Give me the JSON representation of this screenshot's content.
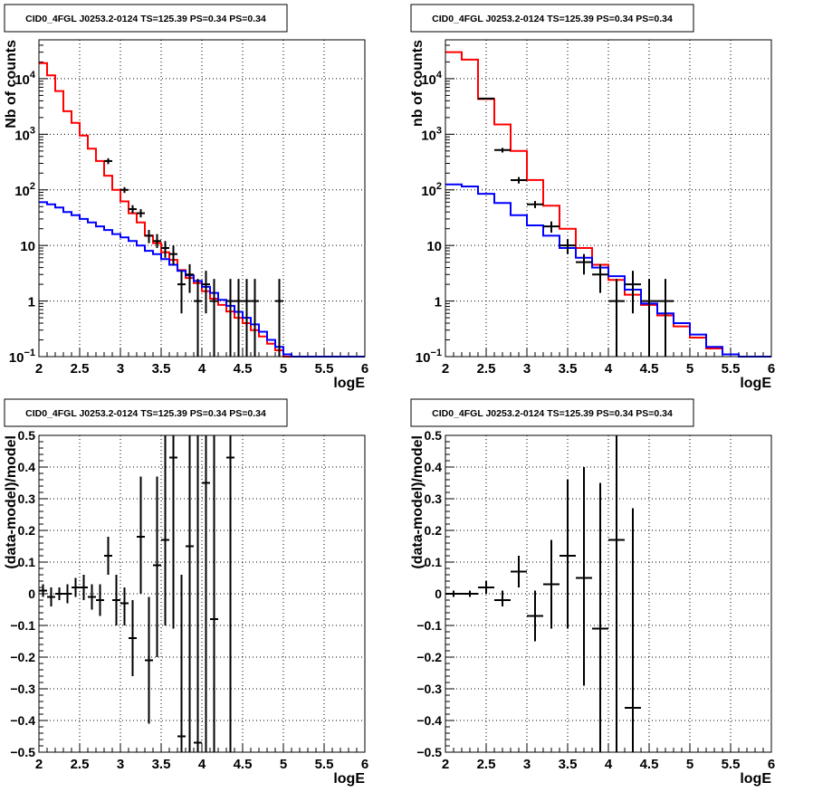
{
  "chart_data": [
    {
      "type": "line",
      "title": "CID0_4FGL J0253.2-0124 TS=125.39 PS=0.34 PS=0.34",
      "xlabel": "logE",
      "ylabel": "Nb of counts",
      "xlim": [
        2,
        6
      ],
      "ylim": [
        0.1,
        50000
      ],
      "yscale": "log",
      "grid": true,
      "x_ticks": [
        "2",
        "2.5",
        "3",
        "3.5",
        "4",
        "4.5",
        "5",
        "5.5",
        "6"
      ],
      "y_ticks": [
        {
          "value": 0.1,
          "label": "10",
          "exp": "−1"
        },
        {
          "value": 1,
          "label": "1",
          "exp": ""
        },
        {
          "value": 10,
          "label": "10",
          "exp": ""
        },
        {
          "value": 100,
          "label": "10",
          "exp": "2"
        },
        {
          "value": 1000,
          "label": "10",
          "exp": "3"
        },
        {
          "value": 10000,
          "label": "10",
          "exp": "4"
        }
      ],
      "bin_edges": [
        2.0,
        2.1,
        2.2,
        2.3,
        2.4,
        2.5,
        2.6,
        2.7,
        2.8,
        2.9,
        3.0,
        3.1,
        3.2,
        3.3,
        3.4,
        3.5,
        3.6,
        3.7,
        3.8,
        3.9,
        4.0,
        4.1,
        4.2,
        4.3,
        4.4,
        4.5,
        4.6,
        4.7,
        4.8,
        4.9,
        5.0,
        5.1,
        5.2,
        5.3,
        5.4,
        5.5,
        5.6,
        5.7,
        5.8,
        5.9,
        6.0
      ],
      "series": [
        {
          "color": "#ff0000",
          "kind": "hist",
          "values": [
            19000,
            11500,
            6000,
            2600,
            1600,
            950,
            550,
            330,
            180,
            100,
            62,
            38,
            26,
            15,
            11,
            7.5,
            5.5,
            3.6,
            2.6,
            2.1,
            1.5,
            1.1,
            0.85,
            0.65,
            0.5,
            0.4,
            0.3,
            0.23,
            0.17,
            0.13,
            0.1,
            0.1,
            0.1,
            0.1,
            0.1,
            0.1,
            0.1,
            0.1,
            0.1,
            0.1
          ]
        },
        {
          "color": "#0000ff",
          "kind": "hist",
          "values": [
            60,
            55,
            48,
            40,
            35,
            30,
            26,
            22,
            19,
            16,
            14,
            12,
            10,
            8,
            7,
            5.7,
            4.5,
            3.5,
            2.9,
            2.3,
            1.8,
            1.4,
            1.05,
            0.82,
            0.64,
            0.5,
            0.38,
            0.28,
            0.2,
            0.15,
            0.11,
            0.1,
            0.1,
            0.1,
            0.1,
            0.1,
            0.1,
            0.1,
            0.1,
            0.1
          ]
        },
        {
          "color": "#000000",
          "kind": "points",
          "points": [
            {
              "x": 2.85,
              "y": 330,
              "lo": 290,
              "hi": 370
            },
            {
              "x": 3.05,
              "y": 100,
              "lo": 88,
              "hi": 112
            },
            {
              "x": 3.15,
              "y": 45,
              "lo": 38,
              "hi": 53
            },
            {
              "x": 3.25,
              "y": 38,
              "lo": 32,
              "hi": 45
            },
            {
              "x": 3.35,
              "y": 15,
              "lo": 11,
              "hi": 19
            },
            {
              "x": 3.45,
              "y": 12,
              "lo": 9,
              "hi": 16
            },
            {
              "x": 3.55,
              "y": 9,
              "lo": 6,
              "hi": 12
            },
            {
              "x": 3.65,
              "y": 7,
              "lo": 4.5,
              "hi": 10
            },
            {
              "x": 3.75,
              "y": 2,
              "lo": 0.6,
              "hi": 3.5
            },
            {
              "x": 3.85,
              "y": 3,
              "lo": 1.4,
              "hi": 4.6
            },
            {
              "x": 3.95,
              "y": 1,
              "lo": 0.1,
              "hi": 2.5
            },
            {
              "x": 4.05,
              "y": 2,
              "lo": 0.6,
              "hi": 3.5
            },
            {
              "x": 4.15,
              "y": 1,
              "lo": 0.1,
              "hi": 2.5
            },
            {
              "x": 4.35,
              "y": 1,
              "lo": 0.1,
              "hi": 2.5
            },
            {
              "x": 4.45,
              "y": 1,
              "lo": 0.1,
              "hi": 2.5
            },
            {
              "x": 4.55,
              "y": 1,
              "lo": 0.1,
              "hi": 2.5
            },
            {
              "x": 4.65,
              "y": 1,
              "lo": 0.1,
              "hi": 2.5
            },
            {
              "x": 4.95,
              "y": 1,
              "lo": 0.1,
              "hi": 2.5
            }
          ]
        }
      ]
    },
    {
      "type": "line",
      "title": "CID0_4FGL J0253.2-0124 TS=125.39 PS=0.34 PS=0.34",
      "xlabel": "logE",
      "ylabel": "nb of counts",
      "xlim": [
        2,
        6
      ],
      "ylim": [
        0.1,
        50000
      ],
      "yscale": "log",
      "grid": true,
      "x_ticks": [
        "2",
        "2.5",
        "3",
        "3.5",
        "4",
        "4.5",
        "5",
        "5.5",
        "6"
      ],
      "y_ticks": [
        {
          "value": 0.1,
          "label": "10",
          "exp": "−1"
        },
        {
          "value": 1,
          "label": "1",
          "exp": ""
        },
        {
          "value": 10,
          "label": "10",
          "exp": ""
        },
        {
          "value": 100,
          "label": "10",
          "exp": "2"
        },
        {
          "value": 1000,
          "label": "10",
          "exp": "3"
        },
        {
          "value": 10000,
          "label": "10",
          "exp": "4"
        }
      ],
      "bin_edges": [
        2.0,
        2.2,
        2.4,
        2.6,
        2.8,
        3.0,
        3.2,
        3.4,
        3.6,
        3.8,
        4.0,
        4.2,
        4.4,
        4.6,
        4.8,
        5.0,
        5.2,
        5.4,
        5.6,
        5.8,
        6.0
      ],
      "series": [
        {
          "color": "#ff0000",
          "kind": "hist",
          "values": [
            30000,
            22000,
            4300,
            1500,
            500,
            150,
            52,
            20,
            9,
            4.5,
            2.4,
            1.3,
            0.85,
            0.55,
            0.35,
            0.22,
            0.14,
            0.11,
            0.1,
            0.1
          ]
        },
        {
          "color": "#0000ff",
          "kind": "hist",
          "values": [
            125,
            115,
            85,
            58,
            35,
            23,
            15,
            9,
            6,
            4,
            2.8,
            1.6,
            0.9,
            0.6,
            0.4,
            0.25,
            0.15,
            0.11,
            0.1,
            0.1
          ]
        },
        {
          "color": "#000000",
          "kind": "points",
          "points": [
            {
              "x": 2.5,
              "y": 4400,
              "lo": 4250,
              "hi": 4550
            },
            {
              "x": 2.7,
              "y": 520,
              "lo": 470,
              "hi": 570
            },
            {
              "x": 2.9,
              "y": 150,
              "lo": 130,
              "hi": 170
            },
            {
              "x": 3.1,
              "y": 55,
              "lo": 47,
              "hi": 63
            },
            {
              "x": 3.3,
              "y": 22,
              "lo": 17,
              "hi": 27
            },
            {
              "x": 3.5,
              "y": 10,
              "lo": 7,
              "hi": 13
            },
            {
              "x": 3.7,
              "y": 5,
              "lo": 3,
              "hi": 7
            },
            {
              "x": 3.9,
              "y": 3,
              "lo": 1.4,
              "hi": 4.6
            },
            {
              "x": 4.1,
              "y": 1,
              "lo": 0.1,
              "hi": 2.5
            },
            {
              "x": 4.3,
              "y": 2,
              "lo": 0.6,
              "hi": 3.5
            },
            {
              "x": 4.5,
              "y": 1,
              "lo": 0.1,
              "hi": 2.5
            },
            {
              "x": 4.7,
              "y": 1,
              "lo": 0.1,
              "hi": 2.5
            }
          ]
        }
      ]
    },
    {
      "type": "scatter",
      "title": "CID0_4FGL J0253.2-0124 TS=125.39 PS=0.34 PS=0.34",
      "xlabel": "logE",
      "ylabel": "(data-model)/model",
      "xlim": [
        2,
        6
      ],
      "ylim": [
        -0.5,
        0.5
      ],
      "grid": true,
      "x_ticks": [
        "2",
        "2.5",
        "3",
        "3.5",
        "4",
        "4.5",
        "5",
        "5.5",
        "6"
      ],
      "y_ticks": [
        "−0.5",
        "−0.4",
        "−0.3",
        "−0.2",
        "−0.1",
        "0",
        "0.1",
        "0.2",
        "0.3",
        "0.4",
        "0.5"
      ],
      "half_width": 0.05,
      "points": [
        {
          "x": 2.05,
          "y": 0.01,
          "lo": -0.01,
          "hi": 0.03
        },
        {
          "x": 2.15,
          "y": -0.01,
          "lo": -0.04,
          "hi": 0.02
        },
        {
          "x": 2.25,
          "y": 0.0,
          "lo": -0.02,
          "hi": 0.02
        },
        {
          "x": 2.35,
          "y": 0.0,
          "lo": -0.03,
          "hi": 0.03
        },
        {
          "x": 2.45,
          "y": 0.02,
          "lo": -0.01,
          "hi": 0.05
        },
        {
          "x": 2.55,
          "y": 0.02,
          "lo": -0.02,
          "hi": 0.06
        },
        {
          "x": 2.65,
          "y": -0.01,
          "lo": -0.05,
          "hi": 0.03
        },
        {
          "x": 2.75,
          "y": -0.02,
          "lo": -0.07,
          "hi": 0.03
        },
        {
          "x": 2.85,
          "y": 0.12,
          "lo": 0.06,
          "hi": 0.18
        },
        {
          "x": 2.95,
          "y": -0.02,
          "lo": -0.1,
          "hi": 0.06
        },
        {
          "x": 3.05,
          "y": -0.03,
          "lo": -0.1,
          "hi": 0.02
        },
        {
          "x": 3.15,
          "y": -0.14,
          "lo": -0.26,
          "hi": -0.02
        },
        {
          "x": 3.25,
          "y": 0.18,
          "lo": 0.0,
          "hi": 0.37
        },
        {
          "x": 3.35,
          "y": -0.21,
          "lo": -0.41,
          "hi": -0.01
        },
        {
          "x": 3.45,
          "y": 0.09,
          "lo": -0.2,
          "hi": 0.37
        },
        {
          "x": 3.55,
          "y": 0.17,
          "lo": -0.1,
          "hi": 0.5
        },
        {
          "x": 3.65,
          "y": 0.43,
          "lo": -0.11,
          "hi": 0.5
        },
        {
          "x": 3.75,
          "y": -0.45,
          "lo": -0.5,
          "hi": 0.06
        },
        {
          "x": 3.85,
          "y": 0.15,
          "lo": -0.5,
          "hi": 0.5
        },
        {
          "x": 3.95,
          "y": -0.47,
          "lo": -0.5,
          "hi": 0.5
        },
        {
          "x": 4.05,
          "y": 0.35,
          "lo": -0.5,
          "hi": 0.5
        },
        {
          "x": 4.15,
          "y": -0.08,
          "lo": -0.5,
          "hi": 0.5
        },
        {
          "x": 4.35,
          "y": 0.43,
          "lo": -0.5,
          "hi": 0.5
        }
      ]
    },
    {
      "type": "scatter",
      "title": "CID0_4FGL J0253.2-0124 TS=125.39 PS=0.34 PS=0.34",
      "xlabel": "logE",
      "ylabel": "(data-model)/model",
      "xlim": [
        2,
        6
      ],
      "ylim": [
        -0.5,
        0.5
      ],
      "grid": true,
      "x_ticks": [
        "2",
        "2.5",
        "3",
        "3.5",
        "4",
        "4.5",
        "5",
        "5.5",
        "6"
      ],
      "y_ticks": [
        "−0.5",
        "−0.4",
        "−0.3",
        "−0.2",
        "−0.1",
        "0",
        "0.1",
        "0.2",
        "0.3",
        "0.4",
        "0.5"
      ],
      "half_width": 0.1,
      "points": [
        {
          "x": 2.1,
          "y": 0.0,
          "lo": -0.01,
          "hi": 0.01
        },
        {
          "x": 2.3,
          "y": 0.0,
          "lo": -0.01,
          "hi": 0.01
        },
        {
          "x": 2.5,
          "y": 0.02,
          "lo": 0.0,
          "hi": 0.04
        },
        {
          "x": 2.7,
          "y": -0.02,
          "lo": -0.04,
          "hi": 0.01
        },
        {
          "x": 2.9,
          "y": 0.07,
          "lo": 0.02,
          "hi": 0.12
        },
        {
          "x": 3.1,
          "y": -0.07,
          "lo": -0.15,
          "hi": 0.01
        },
        {
          "x": 3.3,
          "y": 0.03,
          "lo": -0.11,
          "hi": 0.17
        },
        {
          "x": 3.5,
          "y": 0.12,
          "lo": -0.11,
          "hi": 0.36
        },
        {
          "x": 3.7,
          "y": 0.05,
          "lo": -0.29,
          "hi": 0.4
        },
        {
          "x": 3.9,
          "y": -0.11,
          "lo": -0.5,
          "hi": 0.35
        },
        {
          "x": 4.1,
          "y": 0.17,
          "lo": -0.5,
          "hi": 0.5
        },
        {
          "x": 4.3,
          "y": -0.36,
          "lo": -0.5,
          "hi": 0.27
        }
      ]
    }
  ]
}
